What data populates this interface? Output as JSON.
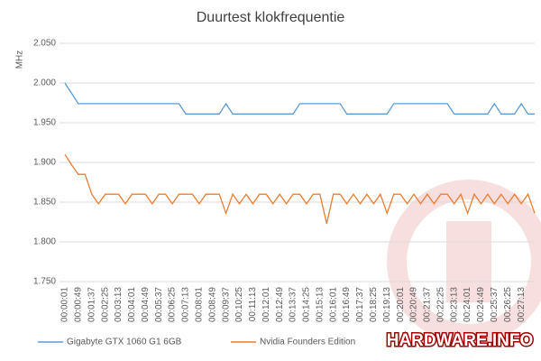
{
  "chart_data": {
    "type": "line",
    "title": "Duurtest klokfrequentie",
    "y_label": "MHz",
    "watermark": "HARDWARE.INFO",
    "categories": [
      "00:00:01",
      null,
      "00:00:49",
      null,
      "00:01:37",
      null,
      "00:02:25",
      null,
      "00:03:13",
      null,
      "00:04:01",
      null,
      "00:04:49",
      null,
      "00:05:37",
      null,
      "00:06:25",
      null,
      "00:07:13",
      null,
      "00:08:01",
      null,
      "00:08:49",
      null,
      "00:09:37",
      null,
      "00:10:25",
      null,
      "00:11:13",
      null,
      "00:12:01",
      null,
      "00:12:49",
      null,
      "00:13:37",
      null,
      "00:14:25",
      null,
      "00:15:13",
      null,
      "00:16:01",
      null,
      "00:16:49",
      null,
      "00:17:37",
      null,
      "00:18:25",
      null,
      "00:19:13",
      null,
      "00:20:01",
      null,
      "00:20:49",
      null,
      "00:21:37",
      null,
      "00:22:25",
      null,
      "00:23:13",
      null,
      "00:24:01",
      null,
      "00:24:49",
      null,
      "00:25:37",
      null,
      "00:26:25",
      null,
      "00:27:13",
      null,
      null
    ],
    "series": [
      {
        "name": "Gigabyte GTX 1060 G1 6GB",
        "color": "#5b9bd5",
        "values": [
          2000,
          1987,
          1974,
          1974,
          1974,
          1974,
          1974,
          1974,
          1974,
          1974,
          1974,
          1974,
          1974,
          1974,
          1974,
          1974,
          1974,
          1974,
          1961,
          1961,
          1961,
          1961,
          1961,
          1961,
          1974,
          1961,
          1961,
          1961,
          1961,
          1961,
          1961,
          1961,
          1961,
          1961,
          1961,
          1974,
          1974,
          1974,
          1974,
          1974,
          1974,
          1974,
          1961,
          1961,
          1961,
          1961,
          1961,
          1961,
          1961,
          1974,
          1974,
          1974,
          1974,
          1974,
          1974,
          1974,
          1974,
          1974,
          1961,
          1961,
          1961,
          1961,
          1961,
          1961,
          1974,
          1961,
          1961,
          1961,
          1974,
          1961,
          1961
        ]
      },
      {
        "name": "Nvidia Founders Edition",
        "color": "#ed7d31",
        "values": [
          1910,
          1897,
          1885,
          1885,
          1860,
          1848,
          1860,
          1860,
          1860,
          1848,
          1860,
          1860,
          1860,
          1848,
          1860,
          1860,
          1848,
          1860,
          1860,
          1860,
          1848,
          1860,
          1860,
          1860,
          1836,
          1860,
          1848,
          1860,
          1848,
          1860,
          1860,
          1848,
          1860,
          1848,
          1860,
          1860,
          1848,
          1860,
          1860,
          1823,
          1860,
          1860,
          1848,
          1860,
          1848,
          1860,
          1848,
          1860,
          1836,
          1860,
          1860,
          1848,
          1860,
          1848,
          1860,
          1848,
          1860,
          1860,
          1848,
          1860,
          1836,
          1860,
          1848,
          1860,
          1848,
          1860,
          1848,
          1860,
          1848,
          1860,
          1836
        ]
      }
    ],
    "ylim": [
      1750,
      2050
    ],
    "yticks": [
      {
        "value": 1750,
        "label": "1.750"
      },
      {
        "value": 1800,
        "label": "1.800"
      },
      {
        "value": 1850,
        "label": "1.850"
      },
      {
        "value": 1900,
        "label": "1.900"
      },
      {
        "value": 1950,
        "label": "1.950"
      },
      {
        "value": 2000,
        "label": "2.000"
      },
      {
        "value": 2050,
        "label": "2.050"
      }
    ],
    "grid": true
  }
}
